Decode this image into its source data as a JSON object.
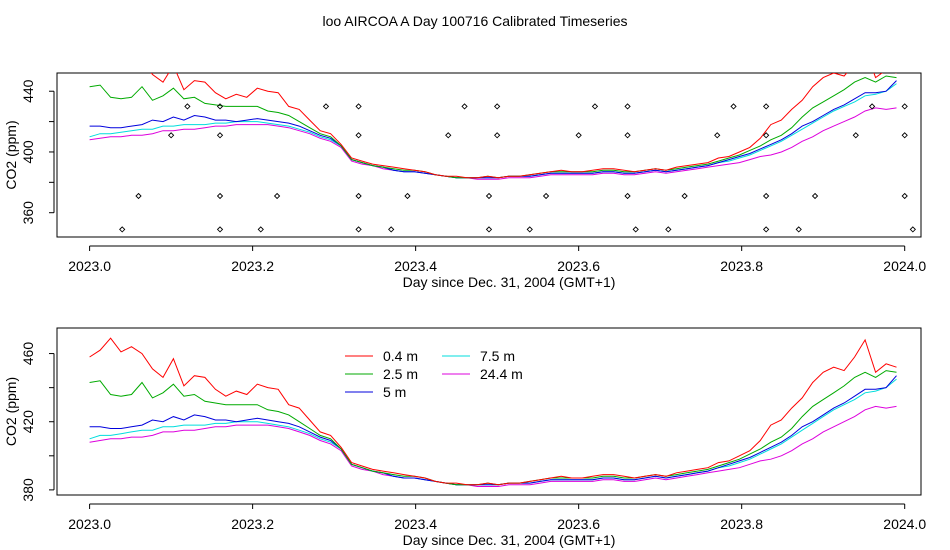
{
  "page_title": "loo AIRCOA A  Day 100716  Calibrated Timeseries",
  "chart_data": [
    {
      "type": "scatter",
      "xlabel": "Day since Dec. 31, 2004 (GMT+1)",
      "ylabel": "CO2 (ppm)",
      "xlim": [
        2022.96,
        2024.02
      ],
      "ylim": [
        344,
        452
      ],
      "x_ticks": [
        "2023.0",
        "2023.2",
        "2023.4",
        "2023.6",
        "2023.8",
        "2024.0"
      ],
      "x_tick_values": [
        2023.0,
        2023.2,
        2023.4,
        2023.6,
        2023.8,
        2024.0
      ],
      "y_ticks": [
        "360",
        "400",
        "440"
      ],
      "y_tick_values": [
        360,
        400,
        440
      ],
      "y_minor_ticks": [
        380,
        420
      ],
      "lines": [
        {
          "key": "0.4 m",
          "color": "#ff0000",
          "values": [
            458,
            462,
            469,
            461,
            464,
            460,
            451,
            446,
            457,
            441,
            447,
            446,
            439,
            435,
            438,
            436,
            442,
            440,
            439,
            430,
            428,
            421,
            414,
            412,
            405,
            396,
            394,
            392,
            391,
            390,
            389,
            388,
            387,
            385,
            384,
            384,
            383,
            383,
            384,
            383,
            384,
            384,
            385,
            386,
            387,
            388,
            387,
            387,
            388,
            389,
            389,
            388,
            387,
            388,
            389,
            388,
            390,
            391,
            392,
            393,
            396,
            397,
            400,
            403,
            409,
            418,
            421,
            428,
            434,
            443,
            449,
            452,
            450,
            458,
            468,
            449,
            454,
            452
          ]
        },
        {
          "key": "2.5 m",
          "color": "#00aa00",
          "values": [
            443,
            444,
            436,
            435,
            436,
            443,
            434,
            437,
            442,
            435,
            436,
            432,
            431,
            430,
            430,
            430,
            430,
            427,
            426,
            424,
            420,
            416,
            412,
            410,
            404,
            395,
            393,
            391,
            390,
            389,
            388,
            388,
            387,
            385,
            384,
            383,
            383,
            383,
            384,
            383,
            384,
            384,
            385,
            386,
            387,
            387,
            387,
            387,
            387,
            388,
            388,
            387,
            387,
            388,
            389,
            388,
            389,
            390,
            391,
            392,
            394,
            396,
            398,
            401,
            404,
            408,
            411,
            416,
            423,
            429,
            433,
            437,
            441,
            446,
            449,
            446,
            450,
            449
          ]
        },
        {
          "key": "5 m",
          "color": "#0000dd",
          "values": [
            417,
            417,
            416,
            416,
            417,
            418,
            421,
            420,
            423,
            421,
            424,
            423,
            421,
            421,
            420,
            421,
            422,
            421,
            420,
            419,
            417,
            414,
            411,
            409,
            404,
            395,
            393,
            391,
            390,
            388,
            387,
            387,
            386,
            385,
            384,
            383,
            383,
            383,
            383,
            383,
            384,
            384,
            384,
            385,
            386,
            386,
            386,
            386,
            386,
            387,
            387,
            386,
            386,
            387,
            388,
            387,
            388,
            389,
            390,
            391,
            393,
            395,
            397,
            399,
            402,
            405,
            408,
            412,
            417,
            420,
            424,
            428,
            431,
            435,
            439,
            439,
            440,
            447
          ]
        },
        {
          "key": "7.5 m",
          "color": "#00dddd",
          "values": [
            410,
            412,
            412,
            413,
            414,
            415,
            415,
            417,
            417,
            418,
            418,
            418,
            419,
            419,
            420,
            420,
            420,
            419,
            418,
            417,
            415,
            413,
            410,
            408,
            404,
            395,
            393,
            391,
            390,
            388,
            387,
            387,
            386,
            385,
            384,
            383,
            383,
            383,
            383,
            383,
            384,
            384,
            384,
            385,
            386,
            386,
            386,
            386,
            386,
            387,
            387,
            386,
            386,
            387,
            388,
            387,
            388,
            389,
            390,
            391,
            393,
            394,
            396,
            398,
            401,
            404,
            407,
            411,
            415,
            419,
            423,
            427,
            430,
            433,
            437,
            438,
            440,
            445
          ]
        },
        {
          "key": "24.4 m",
          "color": "#dd00dd",
          "values": [
            408,
            409,
            410,
            410,
            411,
            411,
            412,
            414,
            414,
            415,
            415,
            416,
            417,
            417,
            418,
            418,
            418,
            418,
            417,
            416,
            414,
            412,
            409,
            407,
            403,
            394,
            392,
            391,
            389,
            388,
            387,
            387,
            386,
            385,
            384,
            383,
            383,
            382,
            382,
            382,
            383,
            383,
            383,
            384,
            385,
            385,
            385,
            385,
            385,
            386,
            386,
            385,
            385,
            386,
            387,
            386,
            387,
            388,
            389,
            390,
            391,
            392,
            393,
            395,
            397,
            398,
            400,
            403,
            407,
            410,
            414,
            417,
            420,
            423,
            427,
            429,
            428,
            429
          ]
        }
      ],
      "points": [
        {
          "x": 2023.04,
          "y": 349
        },
        {
          "x": 2023.06,
          "y": 371
        },
        {
          "x": 2023.1,
          "y": 411
        },
        {
          "x": 2023.12,
          "y": 430
        },
        {
          "x": 2023.16,
          "y": 349
        },
        {
          "x": 2023.16,
          "y": 371
        },
        {
          "x": 2023.16,
          "y": 411
        },
        {
          "x": 2023.16,
          "y": 430
        },
        {
          "x": 2023.21,
          "y": 349
        },
        {
          "x": 2023.23,
          "y": 371
        },
        {
          "x": 2023.29,
          "y": 430
        },
        {
          "x": 2023.33,
          "y": 430
        },
        {
          "x": 2023.33,
          "y": 411
        },
        {
          "x": 2023.33,
          "y": 371
        },
        {
          "x": 2023.33,
          "y": 349
        },
        {
          "x": 2023.37,
          "y": 349
        },
        {
          "x": 2023.39,
          "y": 371
        },
        {
          "x": 2023.44,
          "y": 411
        },
        {
          "x": 2023.46,
          "y": 430
        },
        {
          "x": 2023.49,
          "y": 349
        },
        {
          "x": 2023.49,
          "y": 371
        },
        {
          "x": 2023.5,
          "y": 411
        },
        {
          "x": 2023.5,
          "y": 430
        },
        {
          "x": 2023.54,
          "y": 349
        },
        {
          "x": 2023.56,
          "y": 371
        },
        {
          "x": 2023.6,
          "y": 411
        },
        {
          "x": 2023.62,
          "y": 430
        },
        {
          "x": 2023.66,
          "y": 430
        },
        {
          "x": 2023.66,
          "y": 411
        },
        {
          "x": 2023.66,
          "y": 371
        },
        {
          "x": 2023.67,
          "y": 349
        },
        {
          "x": 2023.71,
          "y": 349
        },
        {
          "x": 2023.73,
          "y": 371
        },
        {
          "x": 2023.77,
          "y": 411
        },
        {
          "x": 2023.79,
          "y": 430
        },
        {
          "x": 2023.83,
          "y": 430
        },
        {
          "x": 2023.83,
          "y": 411
        },
        {
          "x": 2023.83,
          "y": 371
        },
        {
          "x": 2023.83,
          "y": 349
        },
        {
          "x": 2023.87,
          "y": 349
        },
        {
          "x": 2023.89,
          "y": 371
        },
        {
          "x": 2023.94,
          "y": 411
        },
        {
          "x": 2023.96,
          "y": 430
        },
        {
          "x": 2024.0,
          "y": 430
        },
        {
          "x": 2024.0,
          "y": 411
        },
        {
          "x": 2024.0,
          "y": 371
        },
        {
          "x": 2024.01,
          "y": 349
        }
      ]
    },
    {
      "type": "line",
      "xlabel": "Day since Dec. 31, 2004 (GMT+1)",
      "ylabel": "CO2 (ppm)",
      "xlim": [
        2022.96,
        2024.02
      ],
      "ylim": [
        377,
        475
      ],
      "x_ticks": [
        "2023.0",
        "2023.2",
        "2023.4",
        "2023.6",
        "2023.8",
        "2024.0"
      ],
      "x_tick_values": [
        2023.0,
        2023.2,
        2023.4,
        2023.6,
        2023.8,
        2024.0
      ],
      "y_ticks": [
        "380",
        "420",
        "460"
      ],
      "y_tick_values": [
        380,
        420,
        460
      ],
      "y_minor_ticks": [
        400,
        440
      ],
      "legend_position": "top-left",
      "reuse_lines_from": 0
    }
  ]
}
